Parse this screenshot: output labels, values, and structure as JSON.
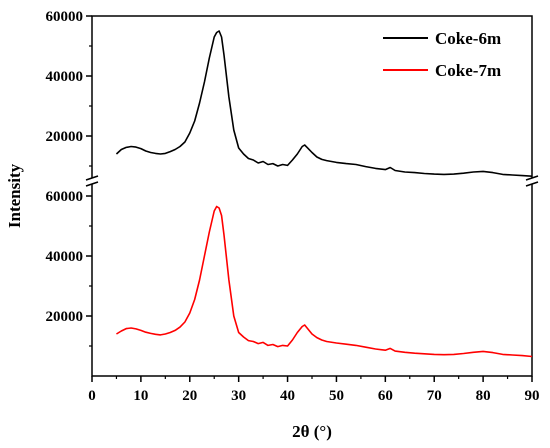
{
  "chart_data": {
    "type": "line",
    "xlabel": "2θ (°)",
    "ylabel": "Intensity",
    "xlim": [
      0,
      90
    ],
    "x_ticks": [
      "0",
      "10",
      "20",
      "30",
      "40",
      "50",
      "60",
      "70",
      "80",
      "90"
    ],
    "y_ticks_upper": [
      "20000",
      "40000",
      "60000"
    ],
    "y_ticks_lower": [
      "20000",
      "40000",
      "60000"
    ],
    "ylim_upper_panel": [
      0,
      60000
    ],
    "ylim_lower_panel": [
      0,
      60000
    ],
    "broken_y_axis": true,
    "grid": false,
    "legend_position": "top-right",
    "series": [
      {
        "name": "Coke-6m",
        "color": "#000000",
        "panel": "upper",
        "x": [
          5,
          6,
          7,
          8,
          9,
          10,
          11,
          12,
          13,
          14,
          15,
          16,
          17,
          18,
          19,
          20,
          21,
          22,
          23,
          24,
          25,
          25.5,
          26,
          26.5,
          27,
          28,
          29,
          30,
          31,
          32,
          33,
          34,
          35,
          36,
          37,
          38,
          39,
          40,
          41,
          42,
          43,
          43.5,
          44,
          45,
          46,
          47,
          48,
          50,
          52,
          54,
          56,
          58,
          60,
          61,
          62,
          64,
          66,
          68,
          70,
          72,
          74,
          76,
          78,
          80,
          82,
          84,
          86,
          88,
          90
        ],
        "y": [
          14000,
          15500,
          16200,
          16500,
          16300,
          15800,
          15000,
          14500,
          14200,
          14000,
          14200,
          14800,
          15500,
          16500,
          18000,
          21000,
          25000,
          31000,
          38000,
          46000,
          53000,
          54500,
          55000,
          53000,
          47000,
          33000,
          22000,
          16000,
          14000,
          12500,
          12000,
          11000,
          11500,
          10500,
          10800,
          10000,
          10500,
          10200,
          12000,
          14000,
          16500,
          17000,
          16200,
          14500,
          13000,
          12200,
          11800,
          11200,
          10800,
          10500,
          9800,
          9200,
          8800,
          9500,
          8500,
          8000,
          7800,
          7500,
          7300,
          7200,
          7300,
          7600,
          8000,
          8200,
          7800,
          7200,
          7000,
          6800,
          6600
        ]
      },
      {
        "name": "Coke-7m",
        "color": "#ff0000",
        "panel": "lower",
        "x": [
          5,
          6,
          7,
          8,
          9,
          10,
          11,
          12,
          13,
          14,
          15,
          16,
          17,
          18,
          19,
          20,
          21,
          22,
          23,
          24,
          25,
          25.5,
          26,
          26.5,
          27,
          28,
          29,
          30,
          31,
          32,
          33,
          34,
          35,
          36,
          37,
          38,
          39,
          40,
          41,
          42,
          43,
          43.5,
          44,
          45,
          46,
          47,
          48,
          50,
          52,
          54,
          56,
          58,
          60,
          61,
          62,
          64,
          66,
          68,
          70,
          72,
          74,
          76,
          78,
          80,
          82,
          84,
          86,
          88,
          90
        ],
        "y": [
          14000,
          15000,
          15800,
          16000,
          15700,
          15200,
          14600,
          14200,
          13900,
          13700,
          14000,
          14500,
          15200,
          16300,
          18000,
          21000,
          25500,
          32000,
          40000,
          48000,
          55000,
          56500,
          56000,
          53500,
          47000,
          32000,
          20000,
          14500,
          13000,
          11800,
          11500,
          10800,
          11200,
          10200,
          10500,
          9800,
          10200,
          10000,
          12000,
          14500,
          16500,
          17000,
          16000,
          14000,
          12800,
          12000,
          11500,
          11000,
          10600,
          10200,
          9600,
          9000,
          8600,
          9200,
          8300,
          7900,
          7600,
          7400,
          7200,
          7100,
          7200,
          7500,
          7900,
          8200,
          7800,
          7200,
          7000,
          6800,
          6500
        ]
      }
    ]
  }
}
